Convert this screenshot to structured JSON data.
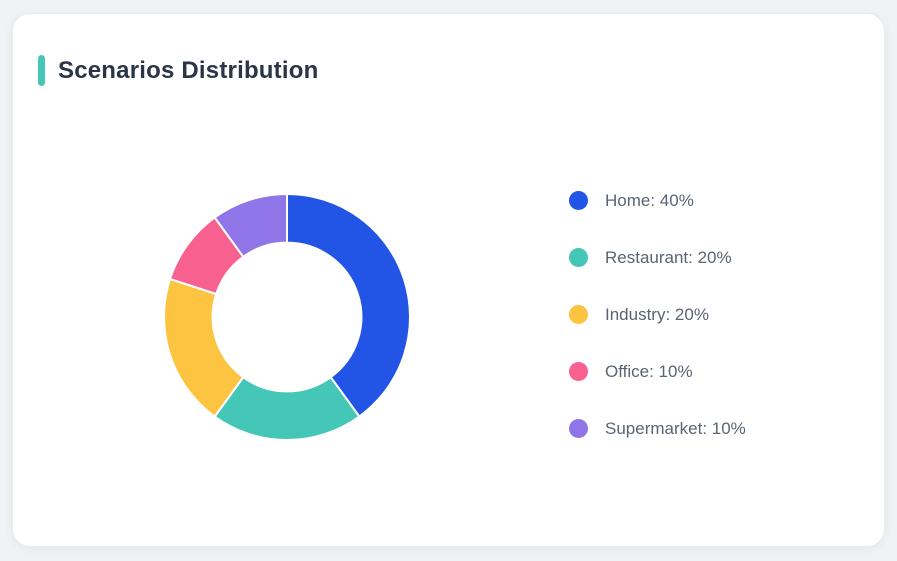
{
  "page": {
    "background_color": "#f0f2f4"
  },
  "card": {
    "title": "Scenarios Distribution",
    "accent_color": "#45c7b7",
    "background_color": "#ffffff"
  },
  "chart_data": {
    "type": "pie",
    "subtype": "donut",
    "title": "Scenarios Distribution",
    "start_angle_deg": 0,
    "direction": "clockwise",
    "inner_radius_ratio": 0.605,
    "segment_gap_color": "#ffffff",
    "legend_position": "right",
    "values_unit": "%",
    "segments": [
      {
        "label": "Home",
        "value": 40,
        "color": "#2254e6",
        "legend_text": "Home: 40%"
      },
      {
        "label": "Restaurant",
        "value": 20,
        "color": "#45c7b7",
        "legend_text": "Restaurant: 20%"
      },
      {
        "label": "Industry",
        "value": 20,
        "color": "#fcc440",
        "legend_text": "Industry: 20%"
      },
      {
        "label": "Office",
        "value": 10,
        "color": "#f8618f",
        "legend_text": "Office: 10%"
      },
      {
        "label": "Supermarket",
        "value": 10,
        "color": "#8f75e8",
        "legend_text": "Supermarket: 10%"
      }
    ]
  }
}
